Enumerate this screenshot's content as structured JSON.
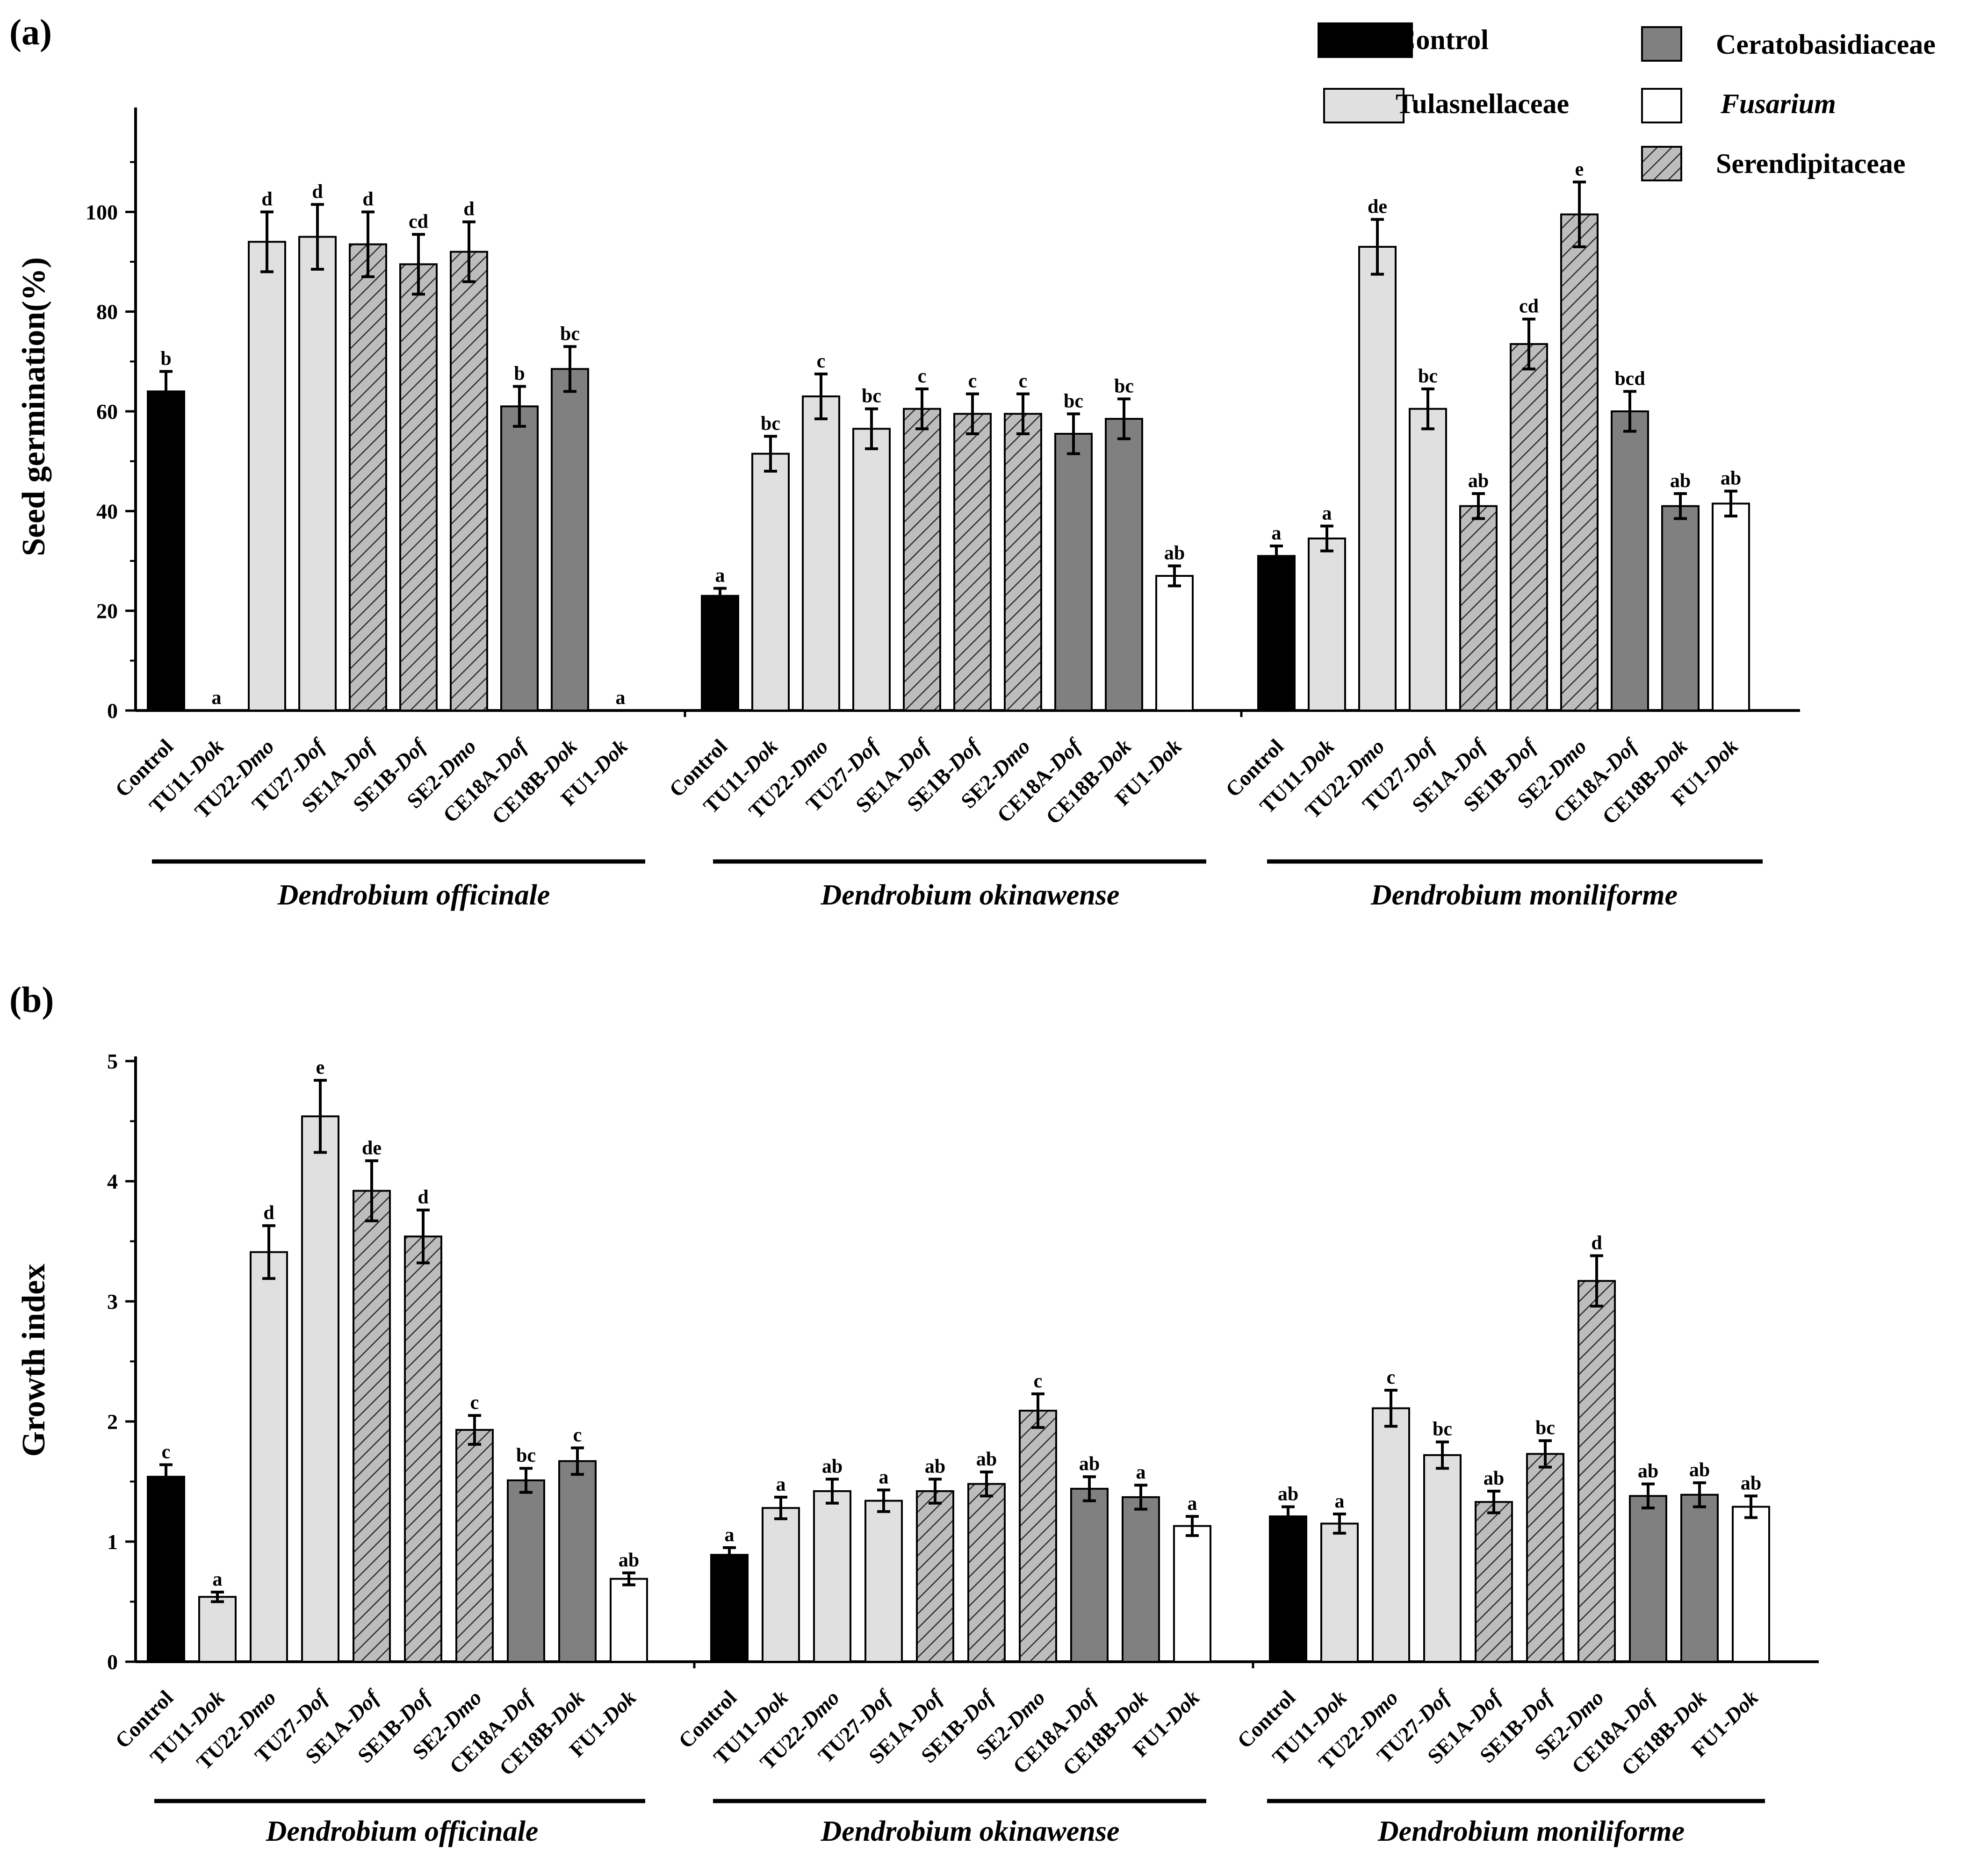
{
  "colors": {
    "Control": "#000000",
    "Tulasnellaceae": "#e0e0e0",
    "Ceratobasidiaceae": "#808080",
    "Fusarium": "#ffffff",
    "Serendipitaceae": "#b8b8b8"
  },
  "legend": [
    {
      "key": "Control",
      "label": "Control",
      "italic": false
    },
    {
      "key": "Ceratobasidiaceae",
      "label": "Ceratobasidiaceae",
      "italic": false
    },
    {
      "key": "Tulasnellaceae",
      "label": "Tulasnellaceae",
      "italic": false
    },
    {
      "key": "Fusarium",
      "label": "Fusarium",
      "italic": true
    },
    {
      "key": "Serendipitaceae",
      "label": "Serendipitaceae",
      "italic": false
    }
  ],
  "treatments": [
    "Control",
    "TU11",
    "TU22",
    "TU27",
    "SE1A",
    "SE1B",
    "SE2",
    "CE18A",
    "CE18B",
    "FU1"
  ],
  "treatment_suffix": [
    "",
    "Dok",
    "Dmo",
    "Dof",
    "Dof",
    "Dof",
    "Dmo",
    "Dof",
    "Dok",
    "Dok"
  ],
  "families": [
    "Control",
    "Tulasnellaceae",
    "Tulasnellaceae",
    "Tulasnellaceae",
    "Serendipitaceae",
    "Serendipitaceae",
    "Serendipitaceae",
    "Ceratobasidiaceae",
    "Ceratobasidiaceae",
    "Fusarium"
  ],
  "species": [
    "Dendrobium officinale",
    "Dendrobium okinawense",
    "Dendrobium moniliforme"
  ],
  "chart_data": [
    {
      "type": "bar",
      "panel": "(a)",
      "ylabel": "Seed  germination(%)",
      "ylim": [
        0,
        120
      ],
      "yticks": [
        0,
        20,
        40,
        60,
        80,
        100
      ],
      "groups": [
        {
          "species": "Dendrobium officinale",
          "values": [
            64,
            0,
            94,
            95,
            93.5,
            89.5,
            92,
            61,
            68.5,
            0
          ],
          "errors": [
            4,
            0,
            6,
            6.5,
            6.5,
            6,
            6,
            4,
            4.5,
            0
          ],
          "letters": [
            "b",
            "a",
            "d",
            "d",
            "d",
            "cd",
            "d",
            "b",
            "bc",
            "a"
          ]
        },
        {
          "species": "Dendrobium okinawense",
          "values": [
            23,
            null,
            63,
            56.5,
            60.5,
            59.5,
            59.5,
            55.5,
            58.5,
            27
          ],
          "errors": [
            1.5,
            null,
            4.5,
            4,
            4,
            4,
            4,
            4,
            4,
            2
          ],
          "letters": [
            "a",
            "bc",
            "c",
            "bc",
            "c",
            "c",
            "c",
            "bc",
            "bc",
            "ab"
          ],
          "values_tu11": 51.5,
          "errors_tu11": 3.5
        },
        {
          "species": "Dendrobium moniliforme",
          "values": [
            31,
            34.5,
            93,
            60.5,
            41,
            73.5,
            99.5,
            60,
            41,
            41.5
          ],
          "errors": [
            2,
            2.5,
            5.5,
            4,
            2.5,
            5,
            6.5,
            4,
            2.5,
            2.5
          ],
          "letters": [
            "a",
            "a",
            "de",
            "bc",
            "ab",
            "cd",
            "e",
            "bcd",
            "ab",
            "ab"
          ]
        }
      ]
    },
    {
      "type": "bar",
      "panel": "(b)",
      "ylabel": "Growth index",
      "ylim": [
        0,
        5
      ],
      "yticks": [
        0,
        1,
        2,
        3,
        4,
        5
      ],
      "groups": [
        {
          "species": "Dendrobium officinale",
          "values": [
            1.54,
            0.54,
            3.41,
            4.54,
            3.92,
            3.54,
            1.93,
            1.51,
            1.67,
            0.69
          ],
          "errors": [
            0.1,
            0.04,
            0.22,
            0.3,
            0.25,
            0.22,
            0.12,
            0.1,
            0.11,
            0.05
          ],
          "letters": [
            "c",
            "a",
            "d",
            "e",
            "de",
            "d",
            "c",
            "bc",
            "c",
            "ab"
          ]
        },
        {
          "species": "Dendrobium okinawense",
          "values": [
            0.89,
            1.28,
            1.42,
            1.34,
            1.42,
            1.48,
            2.09,
            1.44,
            1.37,
            1.13
          ],
          "errors": [
            0.06,
            0.09,
            0.1,
            0.09,
            0.1,
            0.1,
            0.14,
            0.1,
            0.1,
            0.08
          ],
          "letters": [
            "a",
            "a",
            "ab",
            "a",
            "ab",
            "ab",
            "c",
            "ab",
            "a",
            "a"
          ]
        },
        {
          "species": "Dendrobium moniliforme",
          "values": [
            1.21,
            1.15,
            2.11,
            1.72,
            1.33,
            1.73,
            3.17,
            1.38,
            1.39,
            1.29
          ],
          "errors": [
            0.08,
            0.08,
            0.15,
            0.11,
            0.09,
            0.11,
            0.21,
            0.1,
            0.1,
            0.09
          ],
          "letters": [
            "ab",
            "a",
            "c",
            "bc",
            "ab",
            "bc",
            "d",
            "ab",
            "ab",
            "ab"
          ]
        }
      ]
    }
  ]
}
